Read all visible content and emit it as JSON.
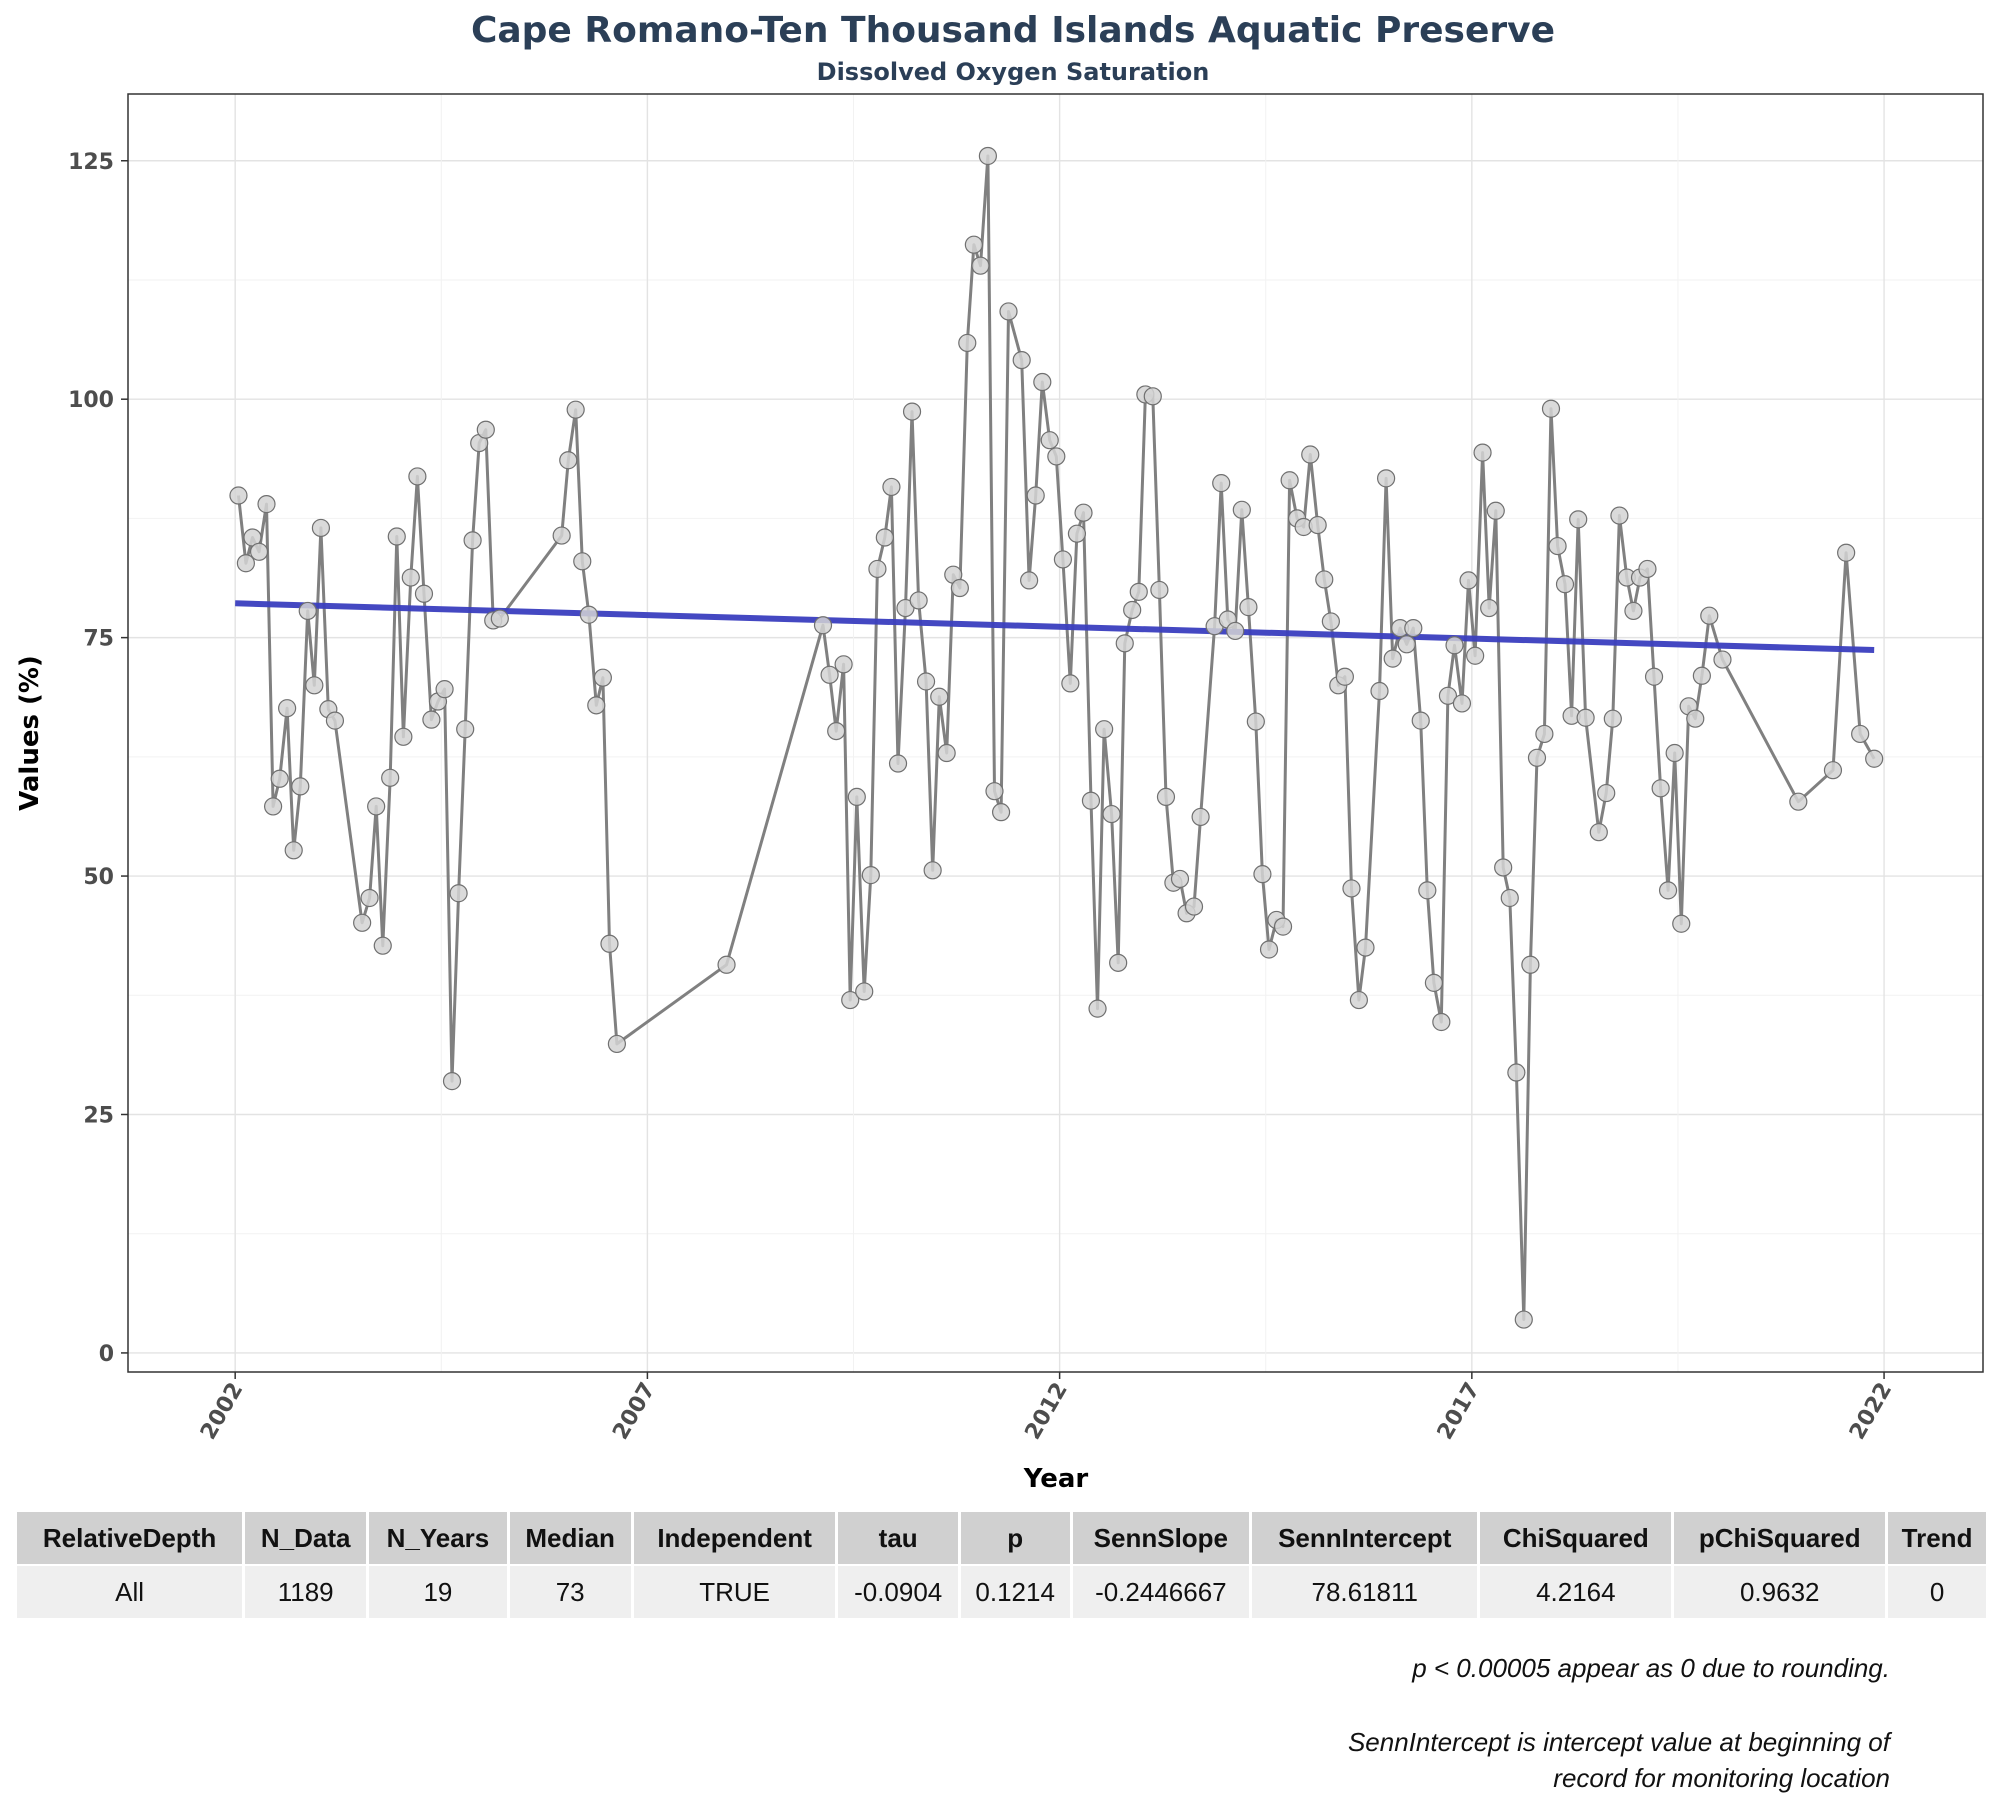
{
  "chart_data": {
    "type": "line",
    "title": "Cape Romano-Ten Thousand Islands Aquatic Preserve",
    "subtitle": "Dissolved Oxygen Saturation",
    "xlabel": "Year",
    "ylabel": "Values (%)",
    "xlim": [
      2000.7,
      2023.2
    ],
    "ylim": [
      -2,
      132
    ],
    "x_ticks": [
      2002,
      2007,
      2012,
      2017,
      2022
    ],
    "y_ticks": [
      0,
      25,
      50,
      75,
      100,
      125
    ],
    "grid": true,
    "series": [
      {
        "style": "line+markers",
        "color": "#808080",
        "points": [
          [
            2002.04,
            89.9
          ],
          [
            2002.13,
            82.8
          ],
          [
            2002.21,
            85.5
          ],
          [
            2002.29,
            84.0
          ],
          [
            2002.38,
            89.0
          ],
          [
            2002.46,
            57.3
          ],
          [
            2002.54,
            60.2
          ],
          [
            2002.63,
            67.6
          ],
          [
            2002.71,
            52.7
          ],
          [
            2002.79,
            59.4
          ],
          [
            2002.88,
            77.8
          ],
          [
            2002.96,
            70.0
          ],
          [
            2003.04,
            86.5
          ],
          [
            2003.13,
            67.5
          ],
          [
            2003.21,
            66.3
          ],
          [
            2003.54,
            45.1
          ],
          [
            2003.63,
            47.7
          ],
          [
            2003.71,
            57.3
          ],
          [
            2003.79,
            42.7
          ],
          [
            2003.88,
            60.3
          ],
          [
            2003.96,
            85.6
          ],
          [
            2004.04,
            64.6
          ],
          [
            2004.13,
            81.3
          ],
          [
            2004.21,
            91.9
          ],
          [
            2004.29,
            79.6
          ],
          [
            2004.38,
            66.4
          ],
          [
            2004.46,
            68.3
          ],
          [
            2004.54,
            69.6
          ],
          [
            2004.63,
            28.5
          ],
          [
            2004.71,
            48.2
          ],
          [
            2004.79,
            65.4
          ],
          [
            2004.88,
            85.2
          ],
          [
            2004.96,
            95.4
          ],
          [
            2005.04,
            96.8
          ],
          [
            2005.13,
            76.8
          ],
          [
            2005.21,
            77.0
          ],
          [
            2005.96,
            85.7
          ],
          [
            2006.04,
            93.6
          ],
          [
            2006.13,
            98.9
          ],
          [
            2006.21,
            83.0
          ],
          [
            2006.29,
            77.4
          ],
          [
            2006.38,
            67.9
          ],
          [
            2006.46,
            70.8
          ],
          [
            2006.54,
            42.9
          ],
          [
            2006.63,
            32.4
          ],
          [
            2007.96,
            40.7
          ],
          [
            2009.13,
            76.3
          ],
          [
            2009.21,
            71.1
          ],
          [
            2009.29,
            65.2
          ],
          [
            2009.38,
            72.2
          ],
          [
            2009.46,
            37.0
          ],
          [
            2009.54,
            58.3
          ],
          [
            2009.63,
            37.9
          ],
          [
            2009.71,
            50.1
          ],
          [
            2009.79,
            82.2
          ],
          [
            2009.88,
            85.5
          ],
          [
            2009.96,
            90.8
          ],
          [
            2010.04,
            61.8
          ],
          [
            2010.13,
            78.1
          ],
          [
            2010.21,
            98.7
          ],
          [
            2010.29,
            78.9
          ],
          [
            2010.38,
            70.4
          ],
          [
            2010.46,
            50.6
          ],
          [
            2010.54,
            68.8
          ],
          [
            2010.63,
            62.9
          ],
          [
            2010.71,
            81.6
          ],
          [
            2010.79,
            80.2
          ],
          [
            2010.88,
            105.9
          ],
          [
            2010.96,
            116.2
          ],
          [
            2011.04,
            114.0
          ],
          [
            2011.13,
            125.5
          ],
          [
            2011.21,
            58.9
          ],
          [
            2011.29,
            56.7
          ],
          [
            2011.38,
            109.2
          ],
          [
            2011.54,
            104.1
          ],
          [
            2011.63,
            81.0
          ],
          [
            2011.71,
            89.9
          ],
          [
            2011.79,
            101.8
          ],
          [
            2011.88,
            95.7
          ],
          [
            2011.96,
            94.0
          ],
          [
            2012.04,
            83.2
          ],
          [
            2012.13,
            70.2
          ],
          [
            2012.21,
            85.9
          ],
          [
            2012.29,
            88.1
          ],
          [
            2012.38,
            57.9
          ],
          [
            2012.46,
            36.1
          ],
          [
            2012.54,
            65.4
          ],
          [
            2012.63,
            56.5
          ],
          [
            2012.71,
            40.9
          ],
          [
            2012.79,
            74.4
          ],
          [
            2012.88,
            77.9
          ],
          [
            2012.96,
            79.8
          ],
          [
            2013.04,
            100.5
          ],
          [
            2013.13,
            100.3
          ],
          [
            2013.21,
            80.0
          ],
          [
            2013.29,
            58.3
          ],
          [
            2013.38,
            49.3
          ],
          [
            2013.46,
            49.7
          ],
          [
            2013.54,
            46.1
          ],
          [
            2013.63,
            46.8
          ],
          [
            2013.71,
            56.2
          ],
          [
            2013.88,
            76.2
          ],
          [
            2013.96,
            91.2
          ],
          [
            2014.04,
            76.9
          ],
          [
            2014.13,
            75.7
          ],
          [
            2014.21,
            88.4
          ],
          [
            2014.29,
            78.2
          ],
          [
            2014.38,
            66.2
          ],
          [
            2014.46,
            50.2
          ],
          [
            2014.54,
            42.3
          ],
          [
            2014.63,
            45.4
          ],
          [
            2014.71,
            44.7
          ],
          [
            2014.79,
            91.5
          ],
          [
            2014.88,
            87.5
          ],
          [
            2014.96,
            86.6
          ],
          [
            2015.04,
            94.2
          ],
          [
            2015.13,
            86.8
          ],
          [
            2015.21,
            81.1
          ],
          [
            2015.29,
            76.7
          ],
          [
            2015.38,
            70.0
          ],
          [
            2015.46,
            70.9
          ],
          [
            2015.54,
            48.7
          ],
          [
            2015.63,
            37.0
          ],
          [
            2015.71,
            42.5
          ],
          [
            2015.88,
            69.4
          ],
          [
            2015.96,
            91.7
          ],
          [
            2016.04,
            72.8
          ],
          [
            2016.13,
            76.0
          ],
          [
            2016.21,
            74.3
          ],
          [
            2016.29,
            76.0
          ],
          [
            2016.38,
            66.3
          ],
          [
            2016.46,
            48.5
          ],
          [
            2016.54,
            38.8
          ],
          [
            2016.63,
            34.7
          ],
          [
            2016.71,
            68.9
          ],
          [
            2016.79,
            74.2
          ],
          [
            2016.88,
            68.1
          ],
          [
            2016.96,
            81.0
          ],
          [
            2017.04,
            73.1
          ],
          [
            2017.13,
            94.4
          ],
          [
            2017.21,
            78.1
          ],
          [
            2017.29,
            88.3
          ],
          [
            2017.38,
            50.9
          ],
          [
            2017.46,
            47.7
          ],
          [
            2017.54,
            29.4
          ],
          [
            2017.63,
            3.5
          ],
          [
            2017.71,
            40.7
          ],
          [
            2017.79,
            62.4
          ],
          [
            2017.88,
            64.9
          ],
          [
            2017.96,
            99.0
          ],
          [
            2018.04,
            84.6
          ],
          [
            2018.13,
            80.6
          ],
          [
            2018.21,
            66.8
          ],
          [
            2018.29,
            87.4
          ],
          [
            2018.38,
            66.6
          ],
          [
            2018.54,
            54.6
          ],
          [
            2018.63,
            58.7
          ],
          [
            2018.71,
            66.5
          ],
          [
            2018.79,
            87.8
          ],
          [
            2018.88,
            81.3
          ],
          [
            2018.96,
            77.8
          ],
          [
            2019.04,
            81.3
          ],
          [
            2019.13,
            82.2
          ],
          [
            2019.21,
            70.9
          ],
          [
            2019.29,
            59.2
          ],
          [
            2019.38,
            48.5
          ],
          [
            2019.46,
            62.9
          ],
          [
            2019.54,
            45.0
          ],
          [
            2019.63,
            67.8
          ],
          [
            2019.71,
            66.5
          ],
          [
            2019.79,
            71.0
          ],
          [
            2019.88,
            77.3
          ],
          [
            2020.04,
            72.7
          ],
          [
            2020.96,
            57.8
          ],
          [
            2021.38,
            61.1
          ],
          [
            2021.54,
            83.9
          ],
          [
            2021.71,
            64.9
          ],
          [
            2021.88,
            62.3
          ]
        ]
      },
      {
        "style": "line",
        "color": "#3b3fbf",
        "points": [
          [
            2002.0,
            78.6
          ],
          [
            2021.88,
            73.7
          ]
        ]
      }
    ]
  },
  "stats_table": {
    "headers": [
      "RelativeDepth",
      "N_Data",
      "N_Years",
      "Median",
      "Independent",
      "tau",
      "p",
      "SennSlope",
      "SennIntercept",
      "ChiSquared",
      "pChiSquared",
      "Trend"
    ],
    "row": [
      "All",
      "1189",
      "19",
      "73",
      "TRUE",
      "-0.0904",
      "0.1214",
      "-0.2446667",
      "78.61811",
      "4.2164",
      "0.9632",
      "0"
    ]
  },
  "notes": {
    "rounding": "p < 0.00005 appear as 0 due to rounding.",
    "intercept_line1": "SennIntercept is intercept value at beginning of",
    "intercept_line2": "record for monitoring location"
  }
}
